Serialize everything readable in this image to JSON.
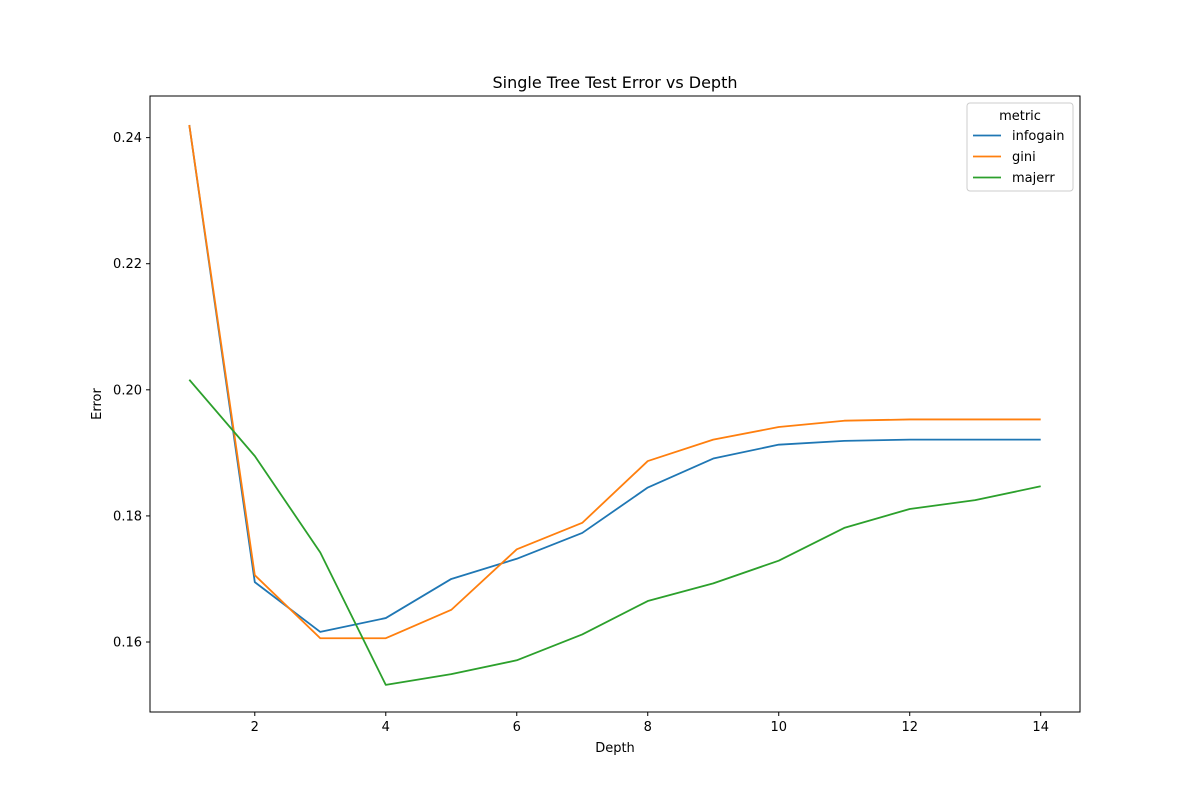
{
  "chart_data": {
    "type": "line",
    "title": "Single Tree Test Error vs Depth",
    "xlabel": "Depth",
    "ylabel": "Error",
    "xlim": [
      0.4,
      14.6
    ],
    "ylim": [
      0.1489,
      0.2466
    ],
    "x_ticks": [
      2,
      4,
      6,
      8,
      10,
      12,
      14
    ],
    "y_ticks": [
      0.16,
      0.18,
      0.2,
      0.22,
      0.24
    ],
    "x_tick_labels": [
      "2",
      "4",
      "6",
      "8",
      "10",
      "12",
      "14"
    ],
    "y_tick_labels": [
      "0.16",
      "0.18",
      "0.20",
      "0.22",
      "0.24"
    ],
    "grid": false,
    "legend": {
      "title": "metric",
      "placement": "top-right"
    },
    "x": [
      1,
      2,
      3,
      4,
      5,
      6,
      7,
      8,
      9,
      10,
      11,
      12,
      13,
      14
    ],
    "series": [
      {
        "name": "infogain",
        "color": "#1f77b4",
        "values": [
          0.242,
          0.1695,
          0.1616,
          0.1638,
          0.17,
          0.1732,
          0.1773,
          0.1845,
          0.1891,
          0.1913,
          0.1919,
          0.1921,
          0.1921,
          0.1921
        ]
      },
      {
        "name": "gini",
        "color": "#ff7f0e",
        "values": [
          0.242,
          0.1706,
          0.1606,
          0.1606,
          0.1651,
          0.1747,
          0.1789,
          0.1887,
          0.1921,
          0.1941,
          0.1951,
          0.1953,
          0.1953,
          0.1953
        ]
      },
      {
        "name": "majerr",
        "color": "#2ca02c",
        "values": [
          0.2016,
          0.1895,
          0.1742,
          0.1532,
          0.1549,
          0.1571,
          0.1612,
          0.1665,
          0.1693,
          0.1729,
          0.1781,
          0.1811,
          0.1825,
          0.1847
        ]
      }
    ]
  }
}
